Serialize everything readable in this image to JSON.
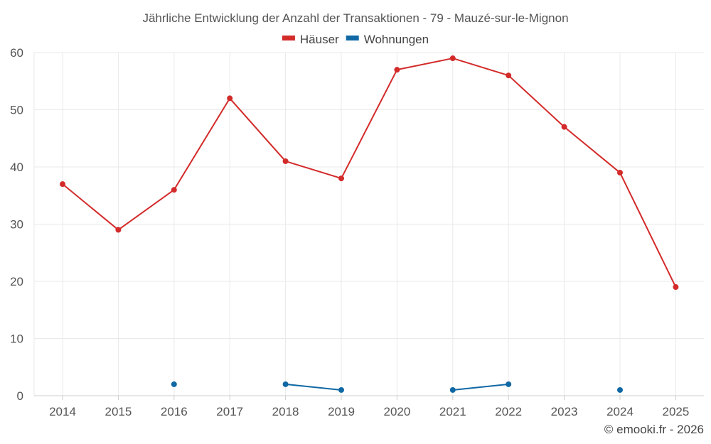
{
  "chart_data": {
    "type": "line",
    "title": "Jährliche Entwicklung der Anzahl der Transaktionen - 79 - Mauzé-sur-le-Mignon",
    "xlabel": "",
    "ylabel": "",
    "ylim": [
      0,
      60
    ],
    "yticks": [
      "0",
      "10",
      "20",
      "30",
      "40",
      "50",
      "60"
    ],
    "categories": [
      "2014",
      "2015",
      "2016",
      "2017",
      "2018",
      "2019",
      "2020",
      "2021",
      "2022",
      "2023",
      "2024",
      "2025"
    ],
    "legend_position": "top",
    "series": [
      {
        "name": "Häuser",
        "color": "#d32a2a",
        "values": [
          37,
          29,
          36,
          52,
          41,
          38,
          57,
          59,
          56,
          47,
          39,
          19
        ]
      },
      {
        "name": "Wohnungen",
        "color": "#0f68a4",
        "values": [
          null,
          null,
          2,
          null,
          2,
          1,
          null,
          1,
          2,
          null,
          1,
          null
        ]
      }
    ],
    "credit": "© emooki.fr - 2026"
  }
}
